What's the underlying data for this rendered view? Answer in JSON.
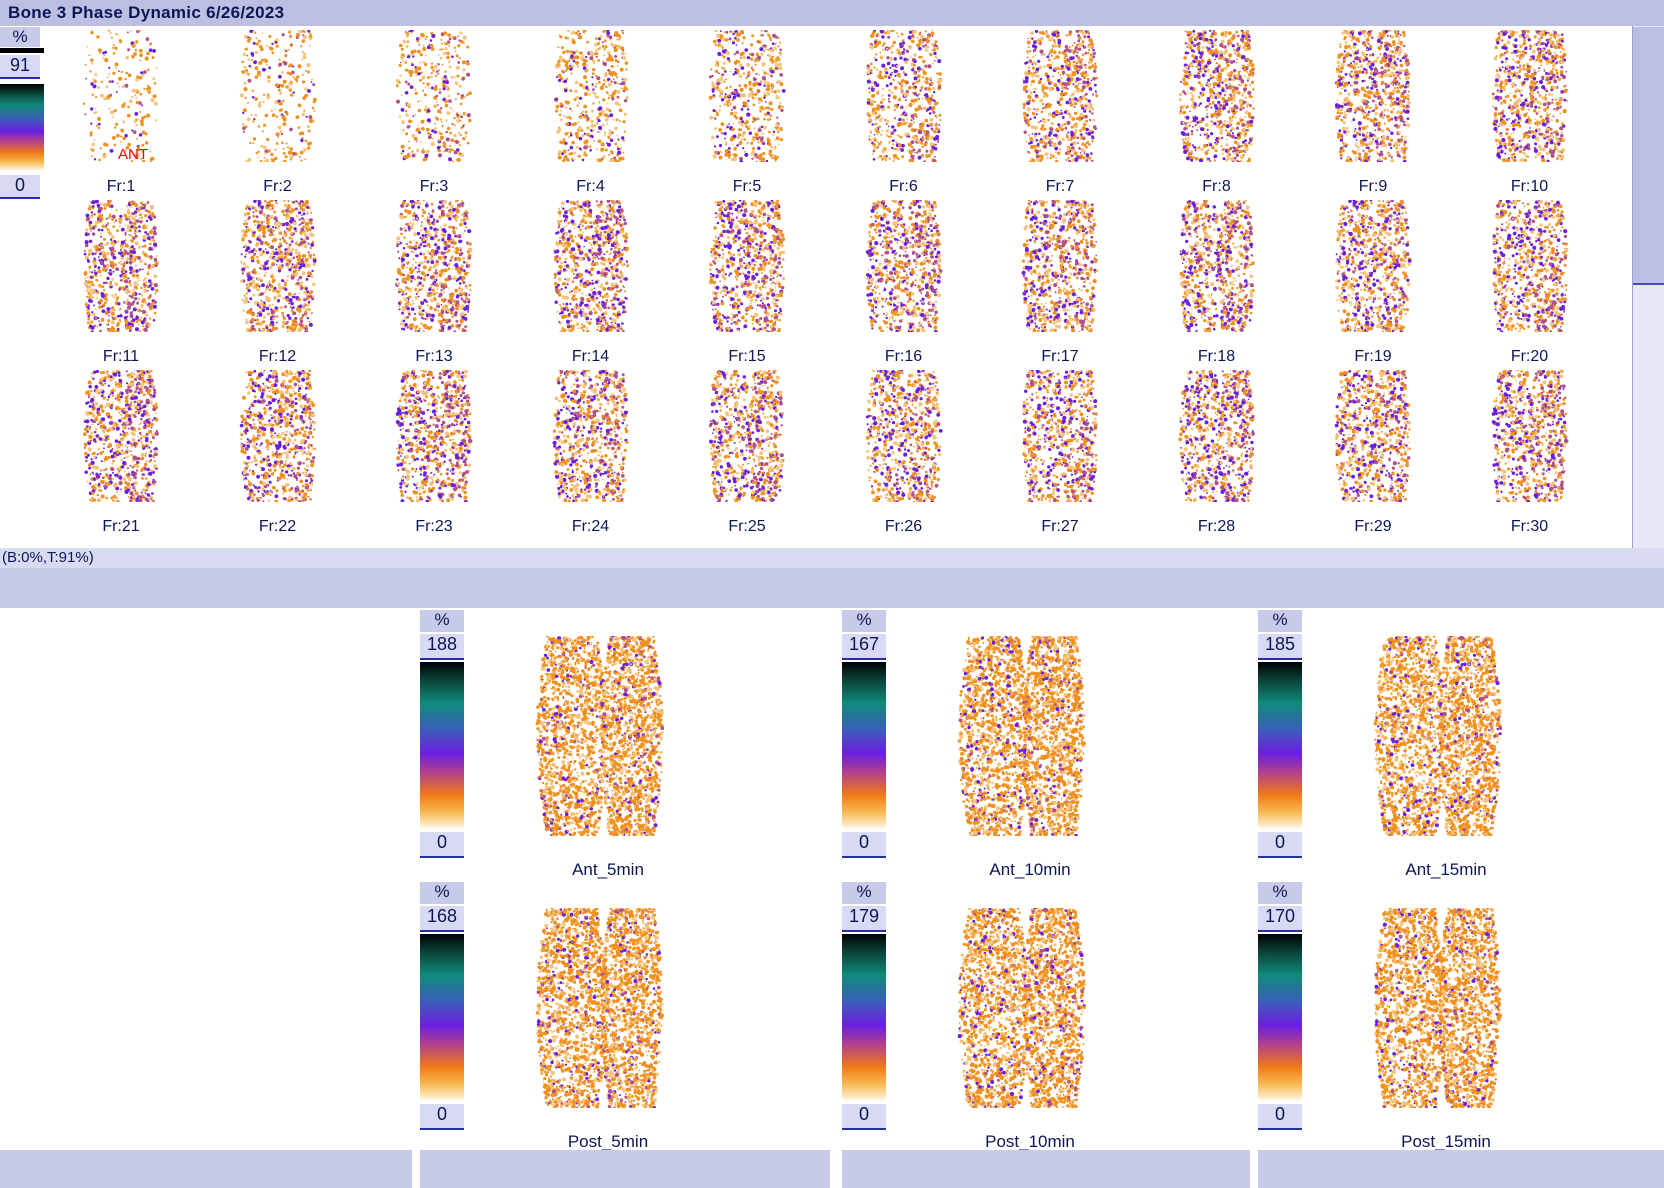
{
  "title": "Bone 3 Phase Dynamic 6/26/2023",
  "dynamic": {
    "scale_unit": "%",
    "scale_max": "91",
    "scale_min": "0",
    "view_label": "ANT",
    "frames": [
      "Fr:1",
      "Fr:2",
      "Fr:3",
      "Fr:4",
      "Fr:5",
      "Fr:6",
      "Fr:7",
      "Fr:8",
      "Fr:9",
      "Fr:10",
      "Fr:11",
      "Fr:12",
      "Fr:13",
      "Fr:14",
      "Fr:15",
      "Fr:16",
      "Fr:17",
      "Fr:18",
      "Fr:19",
      "Fr:20",
      "Fr:21",
      "Fr:22",
      "Fr:23",
      "Fr:24",
      "Fr:25",
      "Fr:26",
      "Fr:27",
      "Fr:28",
      "Fr:29",
      "Fr:30"
    ]
  },
  "status": "(B:0%,T:91%)",
  "static_views": [
    {
      "name": "Ant_5min",
      "unit": "%",
      "max": "188",
      "min": "0"
    },
    {
      "name": "Ant_10min",
      "unit": "%",
      "max": "167",
      "min": "0"
    },
    {
      "name": "Ant_15min",
      "unit": "%",
      "max": "185",
      "min": "0"
    },
    {
      "name": "Post_5min",
      "unit": "%",
      "max": "168",
      "min": "0"
    },
    {
      "name": "Post_10min",
      "unit": "%",
      "max": "179",
      "min": "0"
    },
    {
      "name": "Post_15min",
      "unit": "%",
      "max": "170",
      "min": "0"
    }
  ],
  "colors": {
    "panel_bg": "#bcbfe2",
    "text": "#0b1656",
    "tracer_orange": "#f0901e",
    "tracer_purple": "#6a1fe0",
    "annotation_red": "#ff0000"
  }
}
